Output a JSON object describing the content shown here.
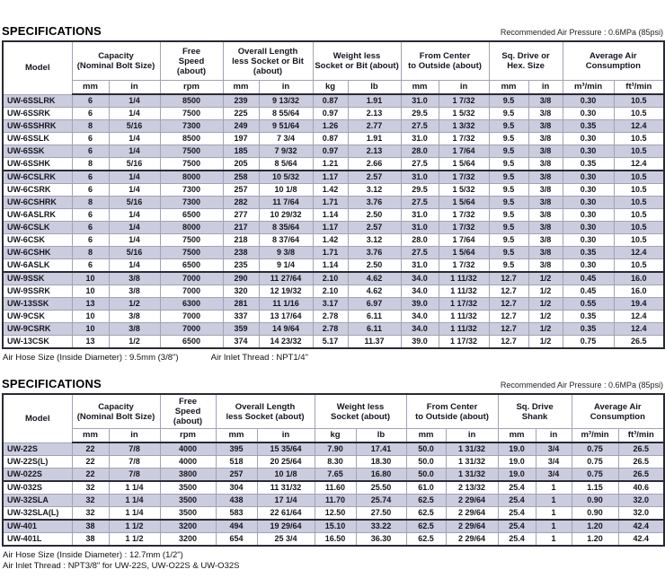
{
  "colors": {
    "row_shade": "#ccccdf",
    "border_dark": "#2a2a35",
    "border_light": "#a2a2b6",
    "text": "#15151f"
  },
  "tables": [
    {
      "title": "SPECIFICATIONS",
      "pressure_note": "Recommended Air Pressure : 0.6MPa (85psi)",
      "model_header": "Model",
      "groups": [
        {
          "label": "Capacity\n(Nominal Bolt Size)",
          "units": [
            "mm",
            "in"
          ]
        },
        {
          "label": "Free\nSpeed\n(about)",
          "units": [
            "rpm"
          ]
        },
        {
          "label": "Overall Length\nless Socket or Bit\n(about)",
          "units": [
            "mm",
            "in"
          ]
        },
        {
          "label": "Weight less\nSocket or Bit (about)",
          "units": [
            "kg",
            "lb"
          ]
        },
        {
          "label": "From Center\nto Outside (about)",
          "units": [
            "mm",
            "in"
          ]
        },
        {
          "label": "Sq. Drive or\nHex. Size",
          "units": [
            "mm",
            "in"
          ]
        },
        {
          "label": "Average Air\nConsumption",
          "units": [
            "m³/min",
            "ft³/min"
          ]
        }
      ],
      "rows": [
        {
          "model": "UW-6SSLRK",
          "values": [
            "6",
            "1/4",
            "8500",
            "239",
            "9 13/32",
            "0.87",
            "1.91",
            "31.0",
            "1 7/32",
            "9.5",
            "3/8",
            "0.30",
            "10.5"
          ]
        },
        {
          "model": "UW-6SSRK",
          "values": [
            "6",
            "1/4",
            "7500",
            "225",
            "8 55/64",
            "0.97",
            "2.13",
            "29.5",
            "1 5/32",
            "9.5",
            "3/8",
            "0.30",
            "10.5"
          ]
        },
        {
          "model": "UW-6SSHRK",
          "values": [
            "8",
            "5/16",
            "7300",
            "249",
            "9 51/64",
            "1.26",
            "2.77",
            "27.5",
            "1 3/32",
            "9.5",
            "3/8",
            "0.35",
            "12.4"
          ]
        },
        {
          "model": "UW-6SSLK",
          "values": [
            "6",
            "1/4",
            "8500",
            "197",
            "7 3/4",
            "0.87",
            "1.91",
            "31.0",
            "1 7/32",
            "9.5",
            "3/8",
            "0.30",
            "10.5"
          ]
        },
        {
          "model": "UW-6SSK",
          "values": [
            "6",
            "1/4",
            "7500",
            "185",
            "7 9/32",
            "0.97",
            "2.13",
            "28.0",
            "1 7/64",
            "9.5",
            "3/8",
            "0.30",
            "10.5"
          ]
        },
        {
          "model": "UW-6SSHK",
          "values": [
            "8",
            "5/16",
            "7500",
            "205",
            "8 5/64",
            "1.21",
            "2.66",
            "27.5",
            "1 5/64",
            "9.5",
            "3/8",
            "0.35",
            "12.4"
          ],
          "group_end": true
        },
        {
          "model": "UW-6CSLRK",
          "values": [
            "6",
            "1/4",
            "8000",
            "258",
            "10 5/32",
            "1.17",
            "2.57",
            "31.0",
            "1 7/32",
            "9.5",
            "3/8",
            "0.30",
            "10.5"
          ]
        },
        {
          "model": "UW-6CSRK",
          "values": [
            "6",
            "1/4",
            "7300",
            "257",
            "10 1/8",
            "1.42",
            "3.12",
            "29.5",
            "1 5/32",
            "9.5",
            "3/8",
            "0.30",
            "10.5"
          ]
        },
        {
          "model": "UW-6CSHRK",
          "values": [
            "8",
            "5/16",
            "7300",
            "282",
            "11 7/64",
            "1.71",
            "3.76",
            "27.5",
            "1 5/64",
            "9.5",
            "3/8",
            "0.30",
            "10.5"
          ]
        },
        {
          "model": "UW-6ASLRK",
          "values": [
            "6",
            "1/4",
            "6500",
            "277",
            "10 29/32",
            "1.14",
            "2.50",
            "31.0",
            "1 7/32",
            "9.5",
            "3/8",
            "0.30",
            "10.5"
          ]
        },
        {
          "model": "UW-6CSLK",
          "values": [
            "6",
            "1/4",
            "8000",
            "217",
            "8 35/64",
            "1.17",
            "2.57",
            "31.0",
            "1 7/32",
            "9.5",
            "3/8",
            "0.30",
            "10.5"
          ]
        },
        {
          "model": "UW-6CSK",
          "values": [
            "6",
            "1/4",
            "7500",
            "218",
            "8 37/64",
            "1.42",
            "3.12",
            "28.0",
            "1 7/64",
            "9.5",
            "3/8",
            "0.30",
            "10.5"
          ]
        },
        {
          "model": "UW-6CSHK",
          "values": [
            "8",
            "5/16",
            "7500",
            "238",
            "9 3/8",
            "1.71",
            "3.76",
            "27.5",
            "1 5/64",
            "9.5",
            "3/8",
            "0.35",
            "12.4"
          ]
        },
        {
          "model": "UW-6ASLK",
          "values": [
            "6",
            "1/4",
            "6500",
            "235",
            "9 1/4",
            "1.14",
            "2.50",
            "31.0",
            "1 7/32",
            "9.5",
            "3/8",
            "0.30",
            "10.5"
          ],
          "group_end": true
        },
        {
          "model": "UW-9SSK",
          "values": [
            "10",
            "3/8",
            "7000",
            "290",
            "11 27/64",
            "2.10",
            "4.62",
            "34.0",
            "1 11/32",
            "12.7",
            "1/2",
            "0.45",
            "16.0"
          ]
        },
        {
          "model": "UW-9SSRK",
          "values": [
            "10",
            "3/8",
            "7000",
            "320",
            "12 19/32",
            "2.10",
            "4.62",
            "34.0",
            "1 11/32",
            "12.7",
            "1/2",
            "0.45",
            "16.0"
          ]
        },
        {
          "model": "UW-13SSK",
          "values": [
            "13",
            "1/2",
            "6300",
            "281",
            "11 1/16",
            "3.17",
            "6.97",
            "39.0",
            "1 17/32",
            "12.7",
            "1/2",
            "0.55",
            "19.4"
          ]
        },
        {
          "model": "UW-9CSK",
          "values": [
            "10",
            "3/8",
            "7000",
            "337",
            "13 17/64",
            "2.78",
            "6.11",
            "34.0",
            "1 11/32",
            "12.7",
            "1/2",
            "0.35",
            "12.4"
          ]
        },
        {
          "model": "UW-9CSRK",
          "values": [
            "10",
            "3/8",
            "7000",
            "359",
            "14 9/64",
            "2.78",
            "6.11",
            "34.0",
            "1 11/32",
            "12.7",
            "1/2",
            "0.35",
            "12.4"
          ]
        },
        {
          "model": "UW-13CSK",
          "values": [
            "13",
            "1/2",
            "6500",
            "374",
            "14 23/32",
            "5.17",
            "11.37",
            "39.0",
            "1 17/32",
            "12.7",
            "1/2",
            "0.75",
            "26.5"
          ]
        }
      ],
      "footnotes": [
        "Air Hose Size (Inside Diameter) : 9.5mm (3/8\")",
        "Air Inlet Thread : NPT1/4\""
      ]
    },
    {
      "title": "SPECIFICATIONS",
      "pressure_note": "Recommended Air Pressure : 0.6MPa (85psi)",
      "model_header": "Model",
      "groups": [
        {
          "label": "Capacity\n(Nominal Bolt Size)",
          "units": [
            "mm",
            "in"
          ]
        },
        {
          "label": "Free\nSpeed\n(about)",
          "units": [
            "rpm"
          ]
        },
        {
          "label": "Overall Length\nless Socket (about)",
          "units": [
            "mm",
            "in"
          ]
        },
        {
          "label": "Weight less\nSocket (about)",
          "units": [
            "kg",
            "lb"
          ]
        },
        {
          "label": "From Center\nto Outside (about)",
          "units": [
            "mm",
            "in"
          ]
        },
        {
          "label": "Sq. Drive\nShank",
          "units": [
            "mm",
            "in"
          ]
        },
        {
          "label": "Average Air\nConsumption",
          "units": [
            "m³/min",
            "ft³/min"
          ]
        }
      ],
      "rows": [
        {
          "model": "UW-22S",
          "values": [
            "22",
            "7/8",
            "4000",
            "395",
            "15 35/64",
            "7.90",
            "17.41",
            "50.0",
            "1 31/32",
            "19.0",
            "3/4",
            "0.75",
            "26.5"
          ]
        },
        {
          "model": "UW-22S(L)",
          "values": [
            "22",
            "7/8",
            "4000",
            "518",
            "20 25/64",
            "8.30",
            "18.30",
            "50.0",
            "1 31/32",
            "19.0",
            "3/4",
            "0.75",
            "26.5"
          ]
        },
        {
          "model": "UW-022S",
          "values": [
            "22",
            "7/8",
            "3800",
            "257",
            "10 1/8",
            "7.65",
            "16.80",
            "50.0",
            "1 31/32",
            "19.0",
            "3/4",
            "0.75",
            "26.5"
          ],
          "group_end": true
        },
        {
          "model": "UW-032S",
          "values": [
            "32",
            "1 1/4",
            "3500",
            "304",
            "11 31/32",
            "11.60",
            "25.50",
            "61.0",
            "2 13/32",
            "25.4",
            "1",
            "1.15",
            "40.6"
          ]
        },
        {
          "model": "UW-32SLA",
          "values": [
            "32",
            "1 1/4",
            "3500",
            "438",
            "17 1/4",
            "11.70",
            "25.74",
            "62.5",
            "2 29/64",
            "25.4",
            "1",
            "0.90",
            "32.0"
          ]
        },
        {
          "model": "UW-32SLA(L)",
          "values": [
            "32",
            "1 1/4",
            "3500",
            "583",
            "22 61/64",
            "12.50",
            "27.50",
            "62.5",
            "2 29/64",
            "25.4",
            "1",
            "0.90",
            "32.0"
          ],
          "group_end": true
        },
        {
          "model": "UW-401",
          "values": [
            "38",
            "1 1/2",
            "3200",
            "494",
            "19 29/64",
            "15.10",
            "33.22",
            "62.5",
            "2 29/64",
            "25.4",
            "1",
            "1.20",
            "42.4"
          ]
        },
        {
          "model": "UW-401L",
          "values": [
            "38",
            "1 1/2",
            "3200",
            "654",
            "25 3/4",
            "16.50",
            "36.30",
            "62.5",
            "2 29/64",
            "25.4",
            "1",
            "1.20",
            "42.4"
          ]
        }
      ],
      "footnotes": [
        "Air Hose Size (Inside Diameter) : 12.7mm (1/2\")",
        "Air Inlet Thread : NPT3/8\" for UW-22S, UW-O22S & UW-O32S"
      ]
    }
  ]
}
